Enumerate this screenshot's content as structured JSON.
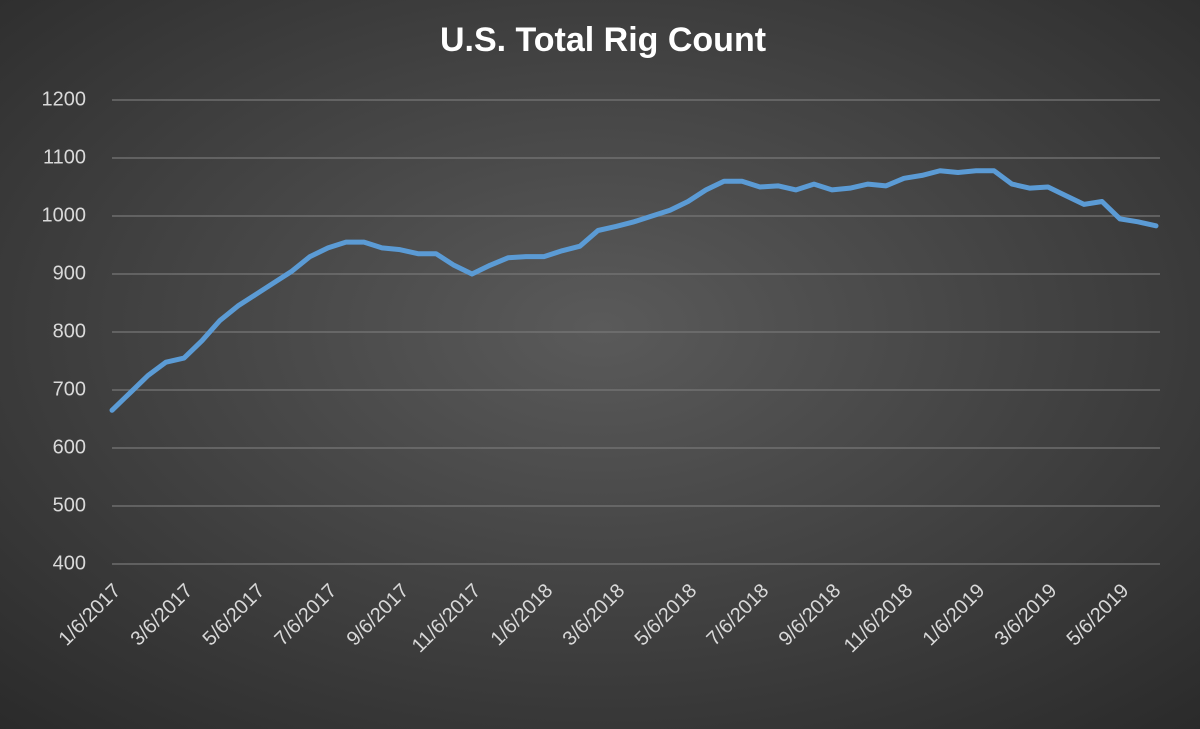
{
  "chart_data": {
    "type": "line",
    "title": "U.S. Total Rig Count",
    "categories": [
      "1/6/2017",
      null,
      null,
      null,
      "3/6/2017",
      null,
      null,
      null,
      "5/6/2017",
      null,
      null,
      null,
      "7/6/2017",
      null,
      null,
      null,
      "9/6/2017",
      null,
      null,
      null,
      "11/6/2017",
      null,
      null,
      null,
      "1/6/2018",
      null,
      null,
      null,
      "3/6/2018",
      null,
      null,
      null,
      "5/6/2018",
      null,
      null,
      null,
      "7/6/2018",
      null,
      null,
      null,
      "9/6/2018",
      null,
      null,
      null,
      "11/6/2018",
      null,
      null,
      null,
      "1/6/2019",
      null,
      null,
      null,
      "3/6/2019",
      null,
      null,
      null,
      "5/6/2019",
      null,
      null
    ],
    "series": [
      {
        "name": "U.S. Total Rig Count",
        "color": "#5b9bd5",
        "values": [
          665,
          695,
          725,
          748,
          755,
          785,
          820,
          845,
          865,
          885,
          905,
          930,
          945,
          955,
          955,
          945,
          942,
          935,
          935,
          915,
          900,
          915,
          928,
          930,
          930,
          940,
          948,
          975,
          982,
          990,
          1000,
          1010,
          1025,
          1045,
          1060,
          1060,
          1050,
          1052,
          1045,
          1055,
          1045,
          1048,
          1055,
          1052,
          1065,
          1070,
          1078,
          1075,
          1078,
          1078,
          1055,
          1048,
          1050,
          1035,
          1020,
          1025,
          995,
          990,
          983
        ]
      }
    ],
    "ylim": [
      400,
      1200
    ],
    "yticks": [
      400,
      500,
      600,
      700,
      800,
      900,
      1000,
      1100,
      1200
    ],
    "grid": true
  }
}
